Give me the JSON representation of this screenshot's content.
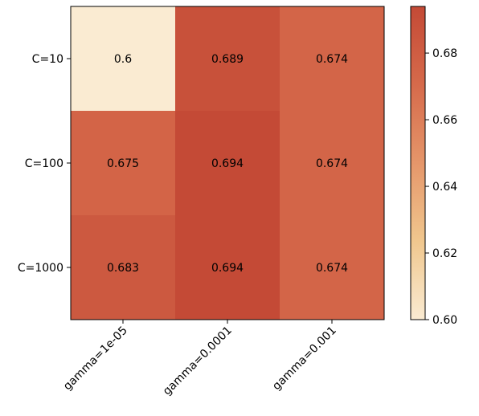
{
  "chart_data": {
    "type": "heatmap",
    "title": "",
    "xlabel": "",
    "ylabel": "",
    "x_categories": [
      "gamma=1e-05",
      "gamma=0.0001",
      "gamma=0.001"
    ],
    "y_categories": [
      "C=10",
      "C=100",
      "C=1000"
    ],
    "values": [
      [
        0.6,
        0.689,
        0.674
      ],
      [
        0.675,
        0.694,
        0.674
      ],
      [
        0.683,
        0.694,
        0.674
      ]
    ],
    "cell_labels": [
      [
        "0.6",
        "0.689",
        "0.674"
      ],
      [
        "0.675",
        "0.694",
        "0.674"
      ],
      [
        "0.683",
        "0.694",
        "0.674"
      ]
    ],
    "colorbar": {
      "min": 0.6,
      "max": 0.694,
      "ticks": [
        0.6,
        0.62,
        0.64,
        0.66,
        0.68
      ],
      "tick_labels": [
        "0.60",
        "0.62",
        "0.64",
        "0.66",
        "0.68"
      ],
      "colormap": [
        "#faebd2",
        "#f0c78e",
        "#e5966a",
        "#d66a4b",
        "#c44a36"
      ]
    }
  }
}
